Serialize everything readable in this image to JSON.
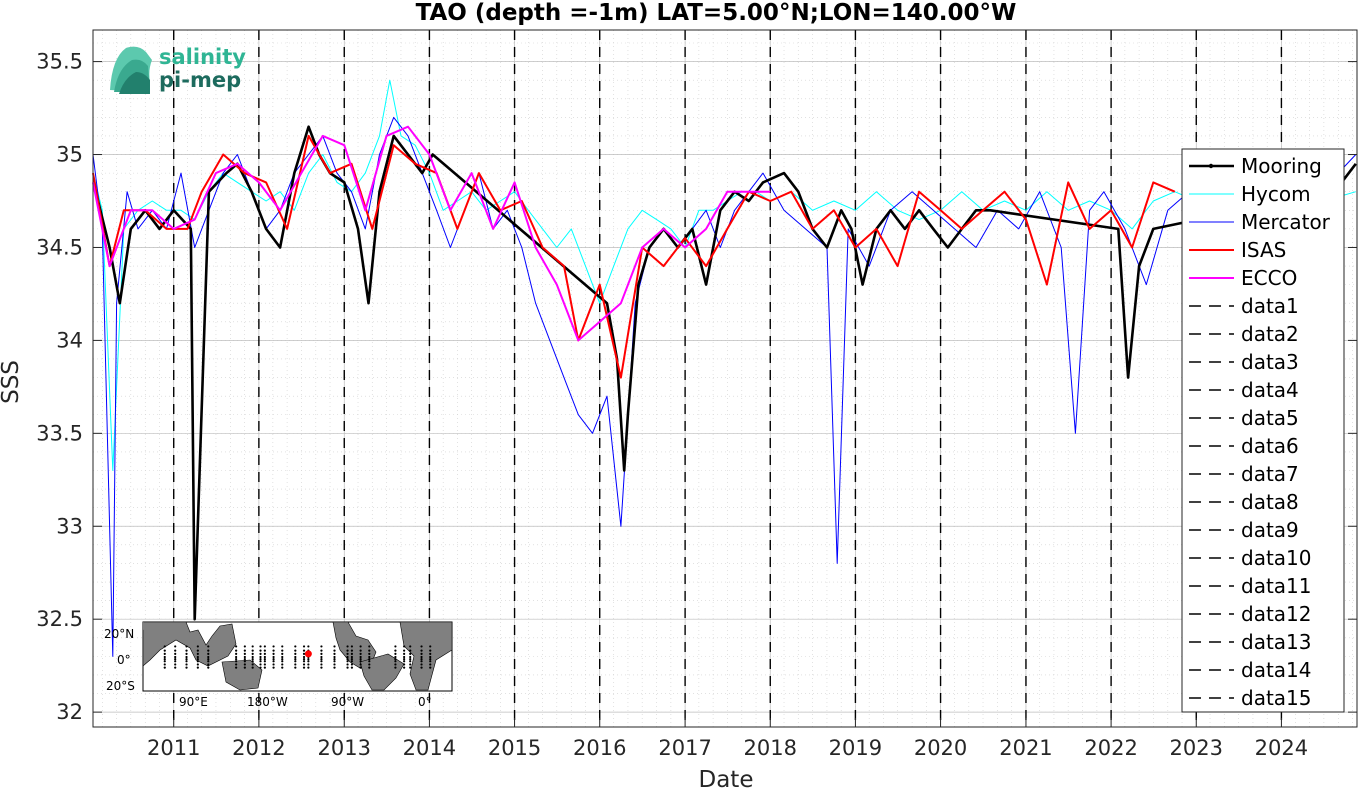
{
  "logo": {
    "line1": "salinity",
    "line2": "pi-mep"
  },
  "chart_data": {
    "type": "line",
    "title": "TAO (depth =-1m) LAT=5.00°N;LON=140.00°W",
    "xlabel": "Date",
    "ylabel": "SSS",
    "xlim": [
      "2010-01-20",
      "2024-11-20"
    ],
    "ylim": [
      31.92,
      35.67
    ],
    "x_ticks": [
      "2011",
      "2012",
      "2013",
      "2014",
      "2015",
      "2016",
      "2017",
      "2018",
      "2019",
      "2020",
      "2021",
      "2022",
      "2023",
      "2024"
    ],
    "y_ticks": [
      "32",
      "32.5",
      "33",
      "33.5",
      "34",
      "34.5",
      "35",
      "35.5"
    ],
    "grid": true,
    "minor_grid": true,
    "legend_position": "right",
    "legend_entries": [
      "Mooring",
      "Hycom",
      "Mercator",
      "ISAS",
      "ECCO",
      "data1",
      "data2",
      "data3",
      "data4",
      "data5",
      "data6",
      "data7",
      "data8",
      "data9",
      "data10",
      "data11",
      "data12",
      "data13",
      "data14",
      "data15"
    ],
    "colors": {
      "Mooring": "#000000",
      "Hycom": "#00ffff",
      "Mercator": "#0000ff",
      "ISAS": "#ff0000",
      "ECCO": "#ff00ff",
      "dashed": "#000000"
    },
    "dashed_lines": [
      "2011-01-01",
      "2012-01-01",
      "2013-01-01",
      "2014-01-01",
      "2015-01-01",
      "2016-01-01",
      "2017-01-01",
      "2018-01-01",
      "2019-01-01",
      "2020-01-01",
      "2021-01-01",
      "2022-01-01",
      "2023-01-01",
      "2024-01-01"
    ],
    "series": [
      {
        "name": "Mooring",
        "x": [
          "2010-02-01",
          "2010-04-01",
          "2010-05-15",
          "2010-07-01",
          "2010-09-01",
          "2010-11-01",
          "2011-01-01",
          "2011-03-15",
          "2011-04-01",
          "2011-06-01",
          "2011-08-15",
          "2011-10-01",
          "2011-12-01",
          "2012-02-01",
          "2012-04-01",
          "2012-06-01",
          "2012-08-01",
          "2012-09-15",
          "2012-11-01",
          "2013-01-01",
          "2013-03-01",
          "2013-04-15",
          "2013-06-01",
          "2013-08-01",
          "2013-10-01",
          "2013-12-01",
          "2014-01-15",
          "2016-02-01",
          "2016-03-15",
          "2016-04-15",
          "2016-05-01",
          "2016-06-15",
          "2016-08-01",
          "2016-10-01",
          "2016-12-01",
          "2017-02-01",
          "2017-04-01",
          "2017-06-01",
          "2017-08-01",
          "2017-10-01",
          "2017-12-01",
          "2018-03-01",
          "2018-05-01",
          "2018-07-01",
          "2018-09-01",
          "2018-11-01",
          "2018-12-15",
          "2019-02-01",
          "2019-04-01",
          "2019-06-01",
          "2019-08-01",
          "2019-10-01",
          "2019-12-01",
          "2020-02-01",
          "2020-04-01",
          "2020-06-01",
          "2020-08-01",
          "2022-02-01",
          "2022-03-15",
          "2022-05-01",
          "2022-07-01",
          "2024-08-01",
          "2024-09-15",
          "2024-11-15"
        ],
        "values": [
          34.8,
          34.5,
          34.2,
          34.6,
          34.7,
          34.6,
          34.7,
          34.6,
          32.5,
          34.8,
          34.9,
          34.95,
          34.8,
          34.6,
          34.5,
          34.9,
          35.15,
          35.0,
          34.9,
          34.85,
          34.6,
          34.2,
          34.8,
          35.1,
          35.0,
          34.9,
          35.0,
          34.2,
          33.9,
          33.3,
          33.6,
          34.3,
          34.5,
          34.6,
          34.5,
          34.6,
          34.3,
          34.7,
          34.8,
          34.75,
          34.85,
          34.9,
          34.8,
          34.6,
          34.5,
          34.7,
          34.6,
          34.3,
          34.6,
          34.7,
          34.6,
          34.7,
          34.6,
          34.5,
          34.6,
          34.7,
          34.7,
          34.6,
          33.8,
          34.4,
          34.6,
          34.8,
          34.85,
          34.95
        ]
      },
      {
        "name": "Hycom",
        "x": [
          "2010-01-20",
          "2010-03-01",
          "2010-04-15",
          "2010-06-01",
          "2010-08-01",
          "2010-10-01",
          "2010-12-01",
          "2011-02-01",
          "2011-04-01",
          "2011-06-01",
          "2011-08-01",
          "2011-10-01",
          "2011-12-01",
          "2012-02-01",
          "2012-04-01",
          "2012-06-01",
          "2012-08-01",
          "2012-10-01",
          "2012-12-01",
          "2013-02-01",
          "2013-04-01",
          "2013-06-01",
          "2013-07-15",
          "2013-09-01",
          "2013-11-01",
          "2014-01-01",
          "2014-03-01",
          "2014-05-01",
          "2014-07-01",
          "2014-09-01",
          "2014-11-01",
          "2015-01-01",
          "2015-03-01",
          "2015-05-01",
          "2015-07-01",
          "2015-09-01",
          "2015-11-01",
          "2016-01-01",
          "2016-03-01",
          "2016-05-01",
          "2016-07-01",
          "2016-09-01",
          "2016-11-01",
          "2017-01-01",
          "2017-03-01",
          "2017-05-01",
          "2017-07-01",
          "2017-09-01",
          "2017-11-01",
          "2018-01-01",
          "2018-04-01",
          "2018-07-01",
          "2018-10-01",
          "2019-01-01",
          "2019-04-01",
          "2019-07-01",
          "2019-10-01",
          "2020-01-01",
          "2020-04-01",
          "2020-07-01",
          "2020-10-01",
          "2021-01-01",
          "2021-04-01",
          "2021-07-01",
          "2021-10-01",
          "2022-01-01",
          "2022-04-01",
          "2022-07-01",
          "2022-10-01",
          "2023-01-01",
          "2023-04-01",
          "2023-07-01",
          "2023-10-01",
          "2024-01-01",
          "2024-04-01",
          "2024-07-01",
          "2024-11-15"
        ],
        "values": [
          34.9,
          34.7,
          33.3,
          34.6,
          34.7,
          34.75,
          34.7,
          34.7,
          34.65,
          34.8,
          34.9,
          34.85,
          34.8,
          34.75,
          34.8,
          34.7,
          34.9,
          35.0,
          34.85,
          34.8,
          34.9,
          35.1,
          35.4,
          35.1,
          35.05,
          34.9,
          34.7,
          34.75,
          34.8,
          34.7,
          34.75,
          34.8,
          34.7,
          34.6,
          34.5,
          34.6,
          34.4,
          34.2,
          34.4,
          34.6,
          34.7,
          34.65,
          34.6,
          34.5,
          34.7,
          34.7,
          34.75,
          34.8,
          34.8,
          34.75,
          34.8,
          34.7,
          34.75,
          34.7,
          34.8,
          34.7,
          34.65,
          34.7,
          34.8,
          34.7,
          34.75,
          34.7,
          34.8,
          34.7,
          34.75,
          34.7,
          34.6,
          34.75,
          34.8,
          34.75,
          34.8,
          34.7,
          34.75,
          34.8,
          34.7,
          34.75,
          34.8
        ]
      },
      {
        "name": "Mercator",
        "x": [
          "2010-01-20",
          "2010-03-01",
          "2010-04-15",
          "2010-05-01",
          "2010-06-15",
          "2010-08-01",
          "2010-10-01",
          "2010-12-01",
          "2011-02-01",
          "2011-04-01",
          "2011-06-01",
          "2011-08-01",
          "2011-10-01",
          "2011-12-01",
          "2012-02-01",
          "2012-04-01",
          "2012-06-01",
          "2012-08-01",
          "2012-10-01",
          "2012-12-01",
          "2013-02-01",
          "2013-04-01",
          "2013-06-01",
          "2013-08-01",
          "2013-10-01",
          "2013-12-01",
          "2014-02-01",
          "2014-04-01",
          "2014-06-01",
          "2014-08-01",
          "2014-10-01",
          "2014-12-01",
          "2015-02-01",
          "2015-04-01",
          "2015-06-01",
          "2015-08-01",
          "2015-10-01",
          "2015-12-01",
          "2016-02-01",
          "2016-04-01",
          "2016-06-01",
          "2016-08-01",
          "2016-10-01",
          "2016-12-01",
          "2017-02-01",
          "2017-04-01",
          "2017-06-01",
          "2017-08-01",
          "2017-10-01",
          "2017-12-01",
          "2018-03-01",
          "2018-06-01",
          "2018-09-01",
          "2018-10-15",
          "2018-12-01",
          "2019-03-01",
          "2019-06-01",
          "2019-09-01",
          "2019-12-01",
          "2020-03-01",
          "2020-06-01",
          "2020-09-01",
          "2020-12-01",
          "2021-03-01",
          "2021-06-01",
          "2021-08-01",
          "2021-10-01",
          "2021-12-01",
          "2022-03-01",
          "2022-06-01",
          "2022-09-01",
          "2022-12-01",
          "2023-03-01",
          "2023-06-01",
          "2023-09-01",
          "2023-12-01",
          "2024-03-01",
          "2024-06-01",
          "2024-09-01",
          "2024-11-15"
        ],
        "values": [
          35.0,
          34.6,
          32.3,
          34.2,
          34.8,
          34.6,
          34.7,
          34.6,
          34.9,
          34.5,
          34.7,
          34.9,
          35.0,
          34.8,
          34.6,
          34.7,
          34.9,
          35.0,
          35.1,
          34.9,
          34.8,
          34.6,
          35.0,
          35.2,
          35.1,
          34.9,
          34.7,
          34.5,
          34.7,
          34.9,
          34.6,
          34.7,
          34.5,
          34.2,
          34.0,
          33.8,
          33.6,
          33.5,
          33.7,
          33.0,
          34.2,
          34.5,
          34.6,
          34.5,
          34.6,
          34.7,
          34.5,
          34.7,
          34.8,
          34.9,
          34.7,
          34.6,
          34.5,
          32.8,
          34.6,
          34.4,
          34.7,
          34.8,
          34.7,
          34.6,
          34.5,
          34.7,
          34.6,
          34.8,
          34.5,
          33.5,
          34.7,
          34.8,
          34.6,
          34.3,
          34.7,
          34.8,
          34.9,
          34.7,
          34.8,
          34.9,
          35.0,
          34.8,
          34.9,
          35.0
        ]
      },
      {
        "name": "ISAS",
        "x": [
          "2010-01-20",
          "2010-04-01",
          "2010-06-01",
          "2010-09-01",
          "2010-12-01",
          "2011-03-01",
          "2011-05-01",
          "2011-08-01",
          "2011-11-01",
          "2012-02-01",
          "2012-05-01",
          "2012-08-01",
          "2012-11-01",
          "2013-02-01",
          "2013-05-01",
          "2013-08-01",
          "2013-11-01",
          "2014-02-01",
          "2014-05-01",
          "2014-08-01",
          "2014-11-01",
          "2015-02-01",
          "2015-05-01",
          "2015-08-01",
          "2015-10-01",
          "2016-01-01",
          "2016-04-01",
          "2016-07-01",
          "2016-10-01",
          "2017-01-01",
          "2017-04-01",
          "2017-07-01",
          "2017-10-01",
          "2018-01-01",
          "2018-04-01",
          "2018-07-01",
          "2018-10-01",
          "2019-01-01",
          "2019-04-01",
          "2019-07-01",
          "2019-10-01",
          "2020-01-01",
          "2020-04-01",
          "2020-07-01",
          "2020-10-01",
          "2021-01-01",
          "2021-04-01",
          "2021-07-01",
          "2021-10-01",
          "2022-01-01",
          "2022-04-01",
          "2022-07-01",
          "2022-10-01"
        ],
        "values": [
          34.9,
          34.4,
          34.7,
          34.7,
          34.6,
          34.6,
          34.8,
          35.0,
          34.9,
          34.85,
          34.6,
          35.1,
          34.9,
          34.95,
          34.6,
          35.05,
          34.95,
          34.9,
          34.6,
          34.9,
          34.7,
          34.75,
          34.5,
          34.4,
          34.0,
          34.3,
          33.8,
          34.5,
          34.4,
          34.55,
          34.4,
          34.6,
          34.8,
          34.75,
          34.8,
          34.6,
          34.7,
          34.5,
          34.6,
          34.4,
          34.8,
          34.7,
          34.6,
          34.7,
          34.8,
          34.65,
          34.3,
          34.85,
          34.6,
          34.7,
          34.5,
          34.85,
          34.8
        ]
      },
      {
        "name": "ECCO",
        "x": [
          "2010-01-20",
          "2010-04-01",
          "2010-07-01",
          "2010-10-01",
          "2011-01-01",
          "2011-04-01",
          "2011-07-01",
          "2011-10-01",
          "2012-01-01",
          "2012-04-01",
          "2012-07-01",
          "2012-10-01",
          "2013-01-01",
          "2013-04-01",
          "2013-07-01",
          "2013-10-01",
          "2014-01-01",
          "2014-04-01",
          "2014-07-01",
          "2014-10-01",
          "2015-01-01",
          "2015-04-01",
          "2015-07-01",
          "2015-10-01",
          "2016-01-01",
          "2016-04-01",
          "2016-07-01",
          "2016-10-01",
          "2017-01-01",
          "2017-04-01",
          "2017-07-01",
          "2017-10-01",
          "2018-01-01"
        ],
        "values": [
          34.85,
          34.4,
          34.7,
          34.7,
          34.6,
          34.65,
          34.9,
          34.95,
          34.85,
          34.7,
          34.9,
          35.1,
          35.05,
          34.7,
          35.1,
          35.15,
          35.0,
          34.7,
          34.9,
          34.6,
          34.85,
          34.5,
          34.3,
          34.0,
          34.1,
          34.2,
          34.5,
          34.6,
          34.5,
          34.6,
          34.8,
          34.8,
          34.8
        ]
      }
    ],
    "inset_map": {
      "lat_labels": [
        "20°N",
        "0°",
        "20°S"
      ],
      "lon_labels": [
        "90°E",
        "180°W",
        "90°W",
        "0°"
      ],
      "marked_location": {
        "lat": 5.0,
        "lon": -140.0,
        "color": "#ff0000"
      }
    }
  }
}
